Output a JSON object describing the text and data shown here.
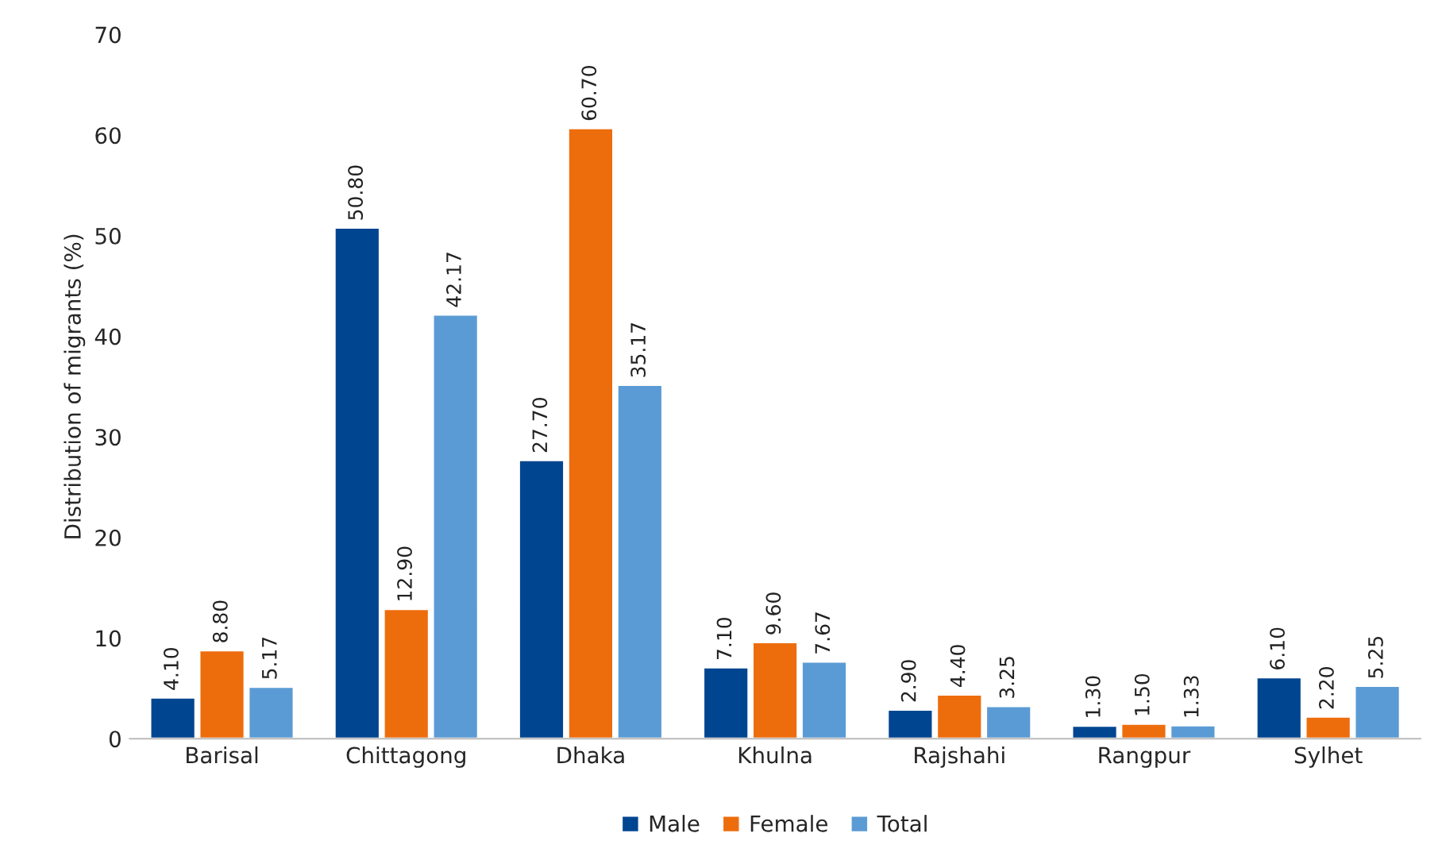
{
  "chart_data": {
    "type": "bar",
    "ylabel": "Distribution of migrants (%)",
    "categories": [
      "Barisal",
      "Chittagong",
      "Dhaka",
      "Khulna",
      "Rajshahi",
      "Rangpur",
      "Sylhet"
    ],
    "series": [
      {
        "name": "Male",
        "color": "#004590",
        "values": [
          4.1,
          50.8,
          27.7,
          7.1,
          2.9,
          1.3,
          6.1
        ],
        "value_labels": [
          "4.10",
          "50.80",
          "27.70",
          "7.10",
          "2.90",
          "1.30",
          "6.10"
        ]
      },
      {
        "name": "Female",
        "color": "#ed6d0c",
        "values": [
          8.8,
          12.9,
          60.7,
          9.6,
          4.4,
          1.5,
          2.2
        ],
        "value_labels": [
          "8.80",
          "12.90",
          "60.70",
          "9.60",
          "4.40",
          "1.50",
          "2.20"
        ]
      },
      {
        "name": "Total",
        "color": "#5b9bd5",
        "values": [
          5.17,
          42.17,
          35.17,
          7.67,
          3.25,
          1.33,
          5.25
        ],
        "value_labels": [
          "5.17",
          "42.17",
          "35.17",
          "7.67",
          "3.25",
          "1.33",
          "5.25"
        ]
      }
    ],
    "ylim": [
      0,
      70
    ],
    "yticks": [
      0,
      10,
      20,
      30,
      40,
      50,
      60,
      70
    ],
    "grid": false,
    "legend": "bottom"
  }
}
